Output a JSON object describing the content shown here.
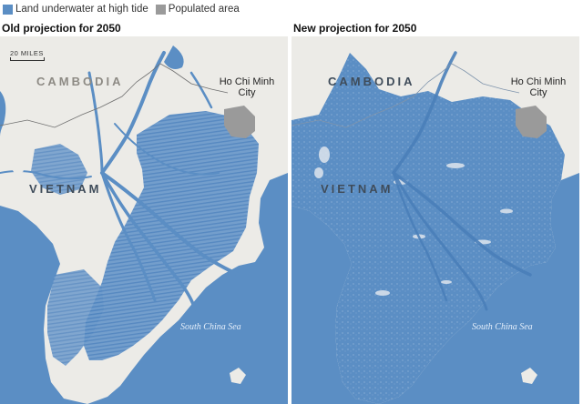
{
  "legend": {
    "items": [
      {
        "label": "Land underwater at high tide",
        "color": "#5b8ec4"
      },
      {
        "label": "Populated area",
        "color": "#9a9a9a"
      }
    ]
  },
  "colors": {
    "sea": "#5b8ec4",
    "land": "#ecebe7",
    "flood": "#5b8ec4",
    "populated": "#9a9a9a",
    "border": "#6f6f6f"
  },
  "panels": [
    {
      "title": "Old projection for 2050",
      "scale_label": "20 MILES",
      "labels": {
        "cambodia": "CAMBODIA",
        "vietnam": "VIETNAM",
        "city": "Ho Chi Minh City",
        "sea": "South China Sea"
      }
    },
    {
      "title": "New projection for 2050",
      "labels": {
        "cambodia": "CAMBODIA",
        "vietnam": "VIETNAM",
        "city": "Ho Chi Minh City",
        "sea": "South China Sea"
      }
    }
  ]
}
